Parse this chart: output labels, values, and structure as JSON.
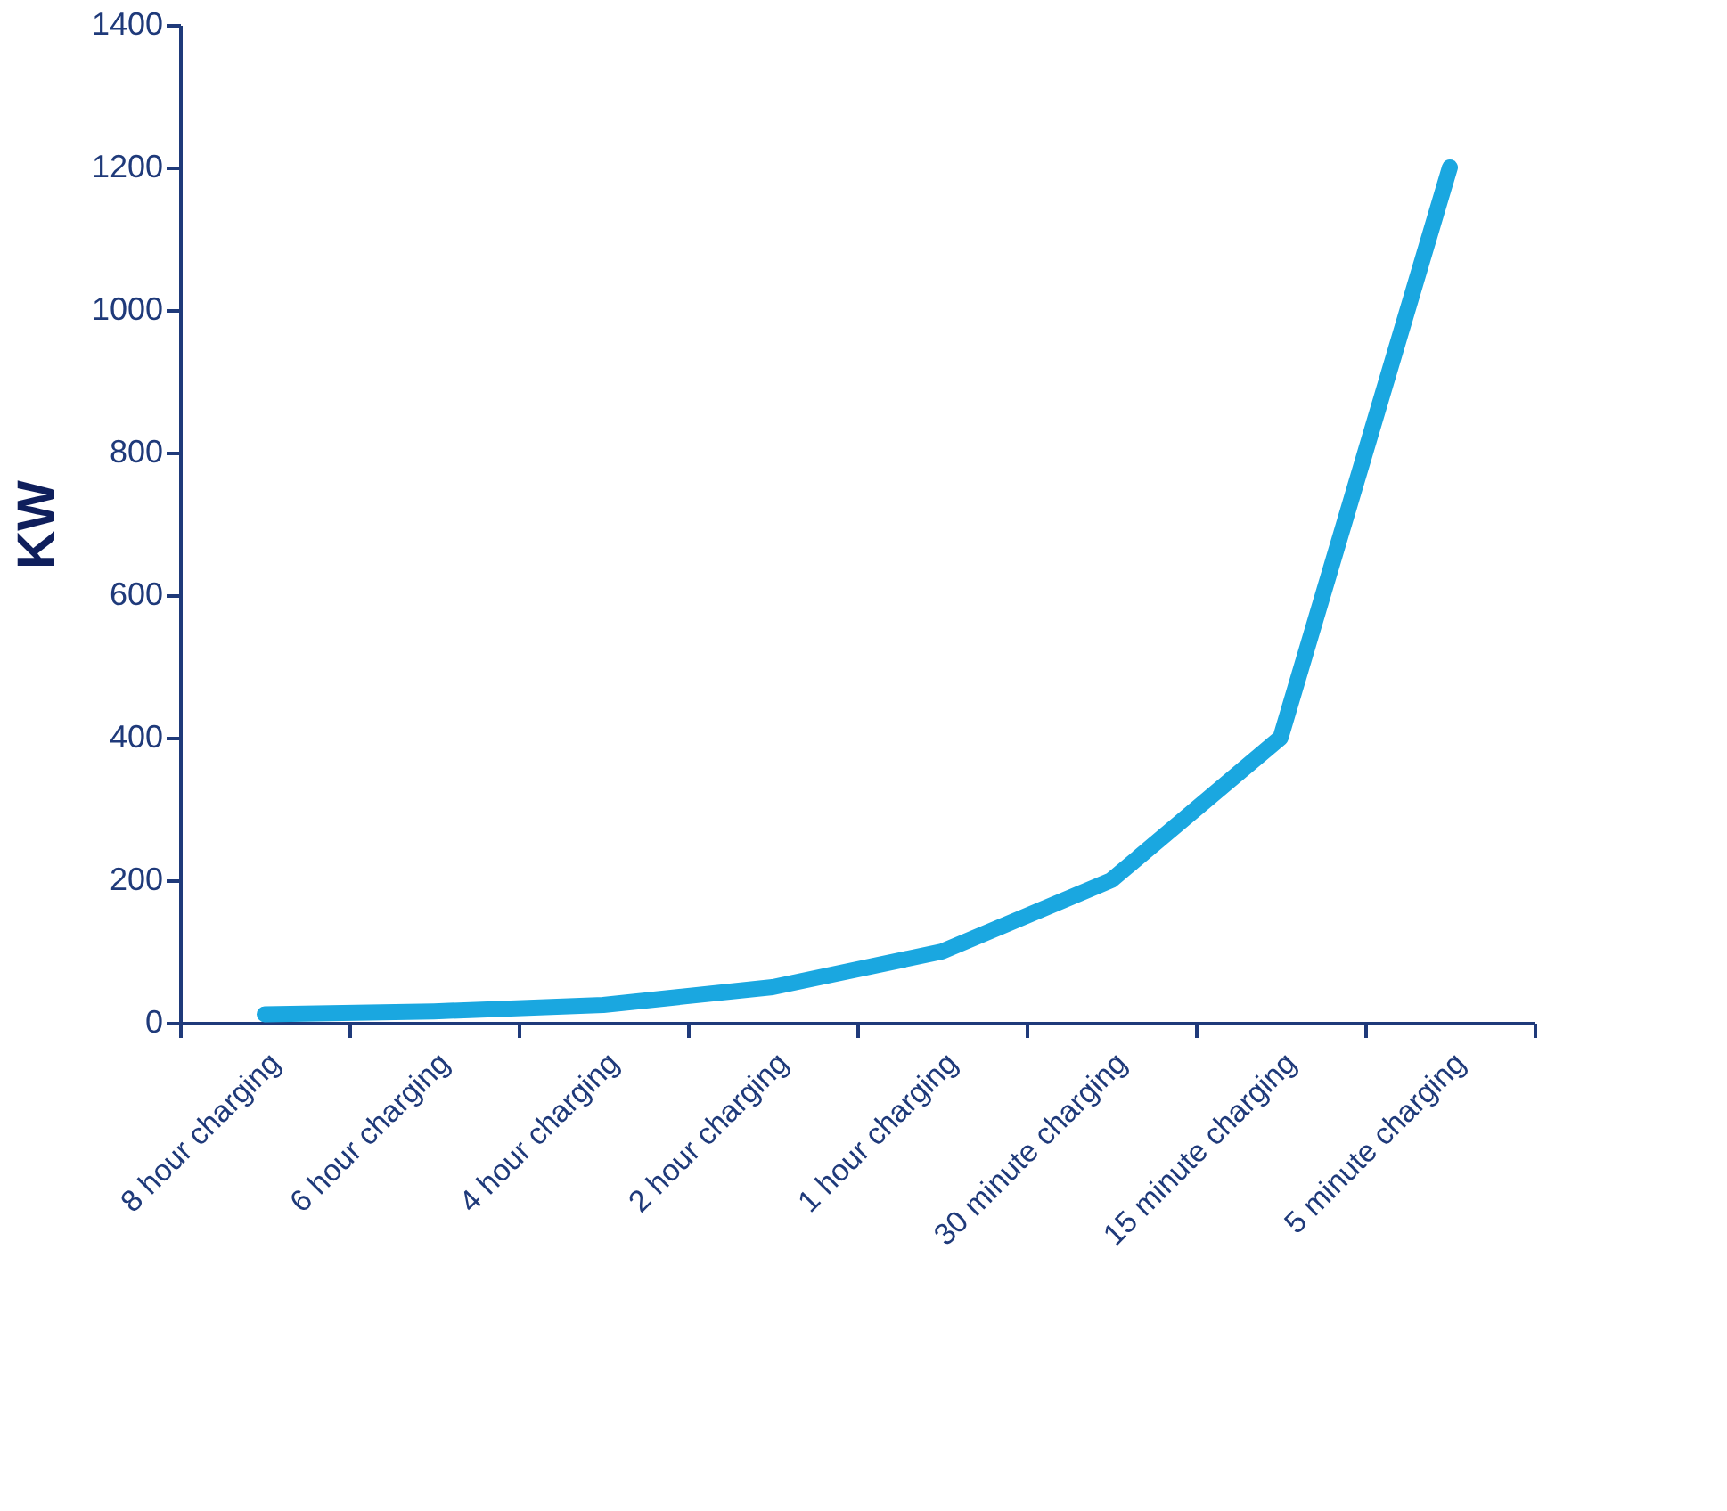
{
  "chart_data": {
    "type": "line",
    "ylabel": "KW",
    "categories": [
      "8 hour charging",
      "6 hour charging",
      "4 hour charging",
      "2 hour charging",
      "1 hour charging",
      "30 minute charging",
      "15 minute charging",
      "5 minute charging"
    ],
    "series": [
      {
        "color": "#1aa7e0",
        "values": [
          12,
          16,
          25,
          50,
          100,
          200,
          400,
          1200
        ]
      }
    ],
    "ylim": [
      0,
      1400
    ],
    "yticks": [
      0,
      200,
      400,
      600,
      800,
      1000,
      1200,
      1400
    ],
    "grid": false,
    "marker": "none",
    "line_style": "solid"
  }
}
